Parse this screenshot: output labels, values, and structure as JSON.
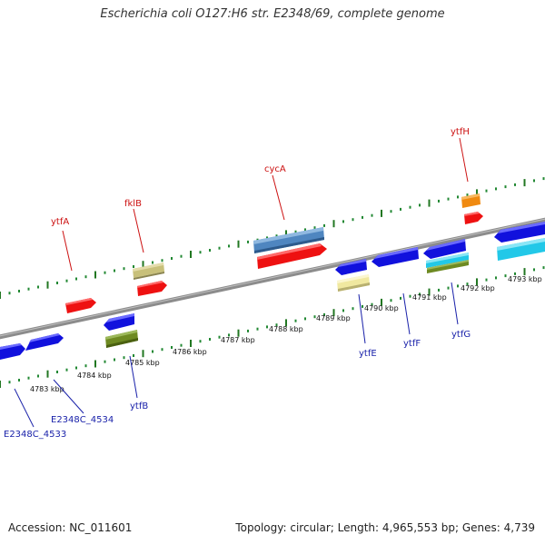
{
  "title": "Escherichia coli O127:H6 str. E2348/69, complete genome",
  "footer": {
    "accession": "Accession: NC_011601",
    "stats": "Topology: circular; Length: 4,965,553 bp; Genes: 4,739"
  },
  "kbp_ticks": [
    "4783 kbp",
    "4784 kbp",
    "4785 kbp",
    "4786 kbp",
    "4787 kbp",
    "4788 kbp",
    "4789 kbp",
    "4790 kbp",
    "4791 kbp",
    "4792 kbp",
    "4793 kbp"
  ],
  "forward_genes": [
    "ytfA",
    "fklB",
    "cycA",
    "ytfH"
  ],
  "reverse_genes": [
    "E2348C_4533",
    "E2348C_4534",
    "ytfB",
    "ytfE",
    "ytfF",
    "ytfG"
  ],
  "colors": {
    "forward_cds": "#ee1111",
    "reverse_cds": "#1111dd",
    "backbone": "#8a8a8a",
    "tick_major": "#227722",
    "tick_minor": "#228833",
    "label_forward": "#cc1111",
    "label_reverse": "#1a22aa",
    "feature_khaki": "#c8c07a",
    "feature_olive": "#6e8a22",
    "feature_steelblue": "#4f86c0",
    "feature_orange": "#f08a10",
    "feature_cyan": "#22c8e8",
    "feature_paleyellow": "#f0e8a0"
  }
}
